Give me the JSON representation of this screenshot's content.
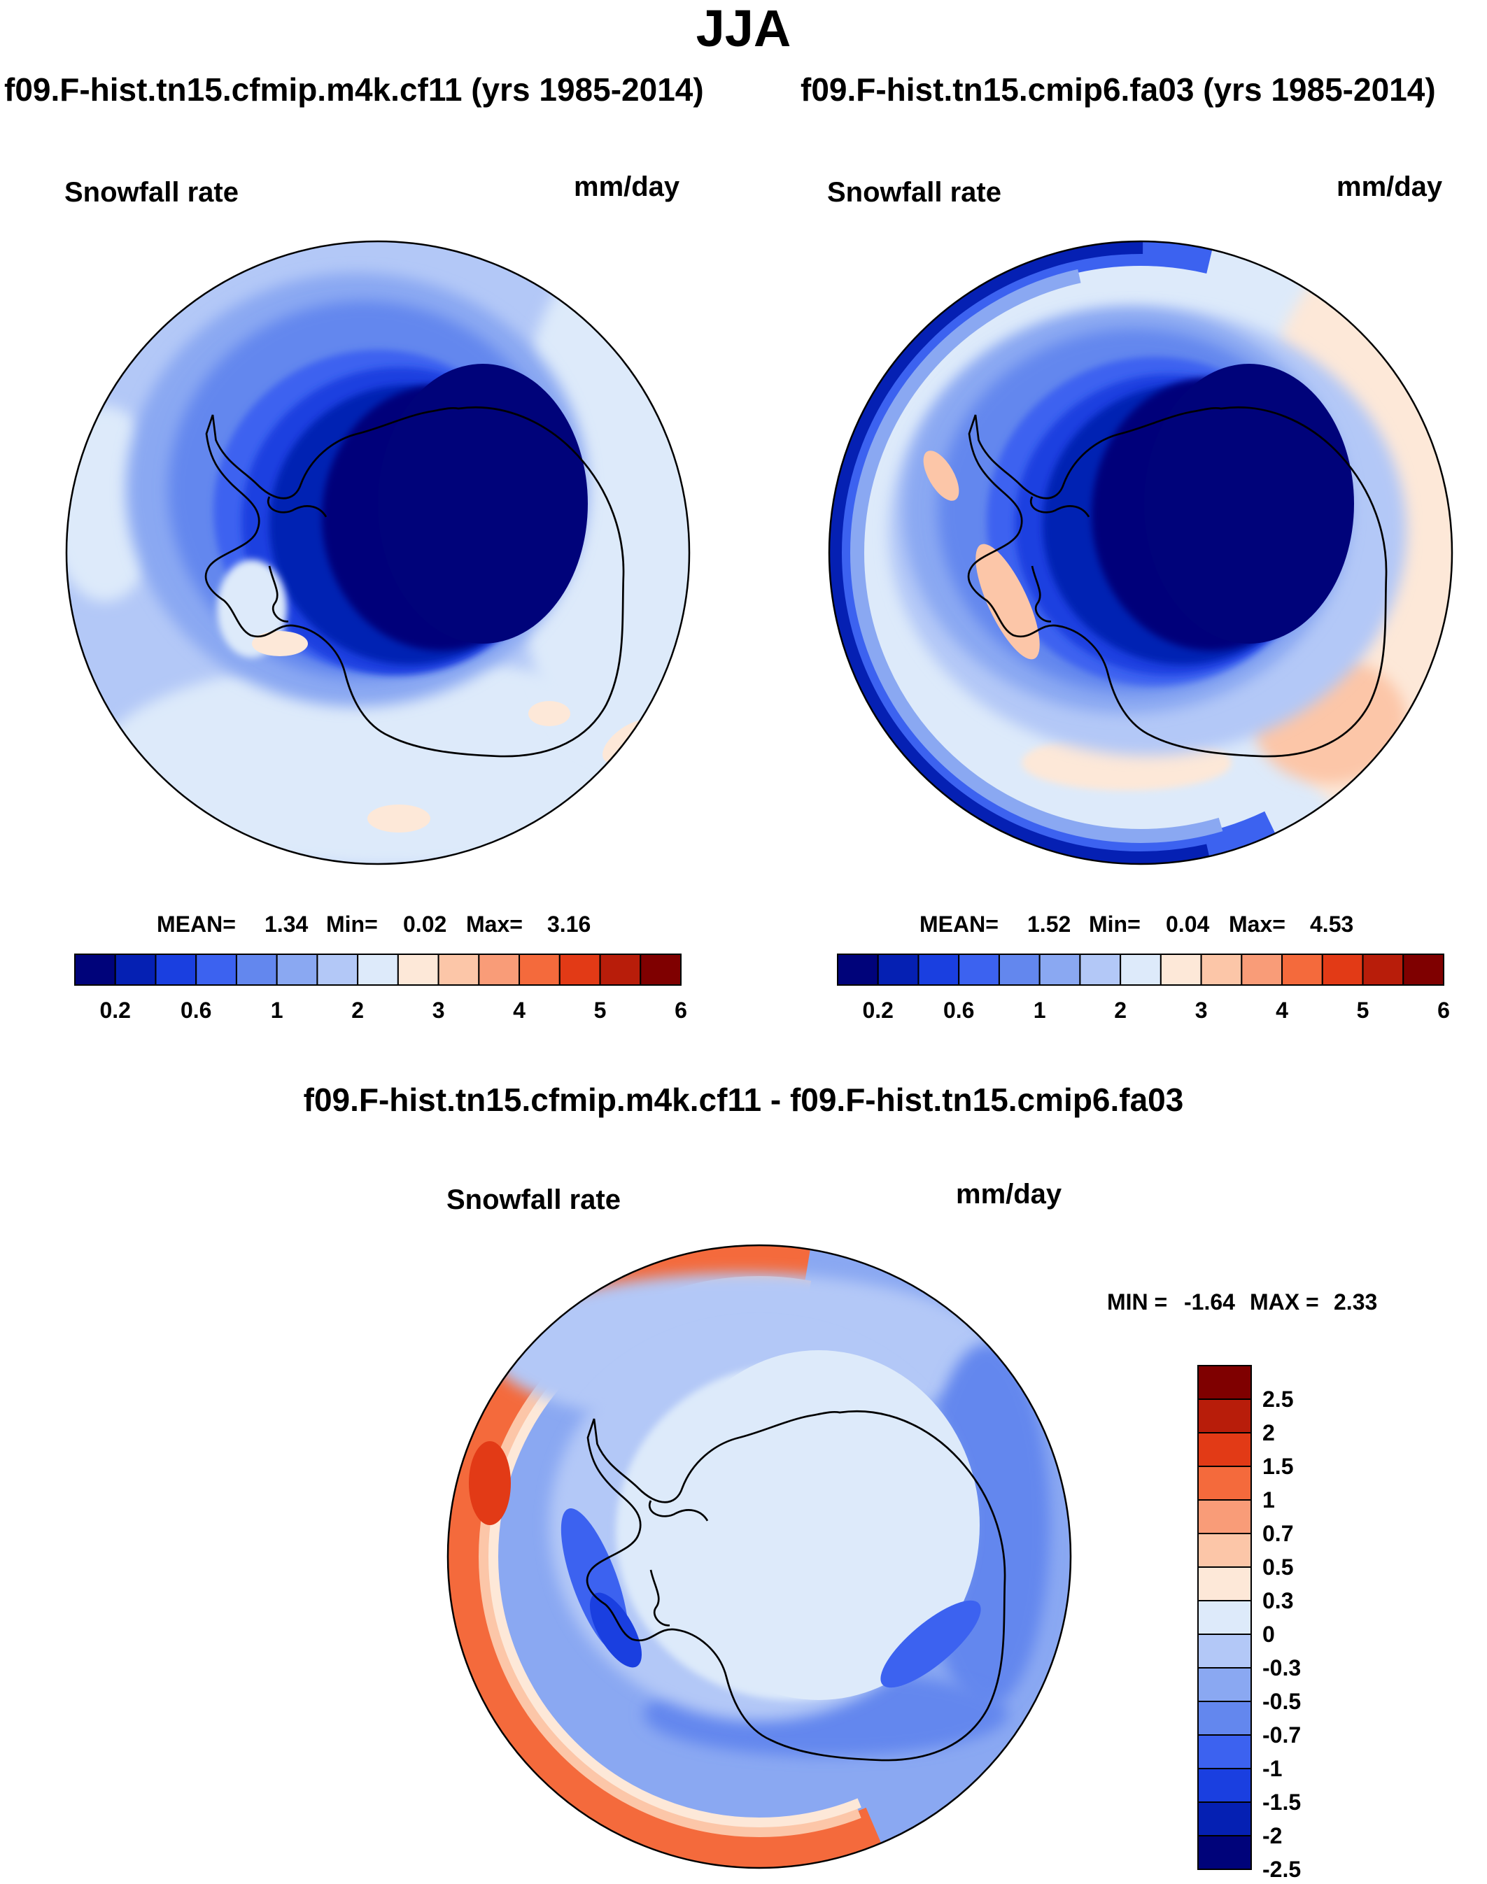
{
  "title": "JJA",
  "chart_data": [
    {
      "type": "heatmap",
      "projection": "south-polar-stereographic",
      "title": "f09.F-hist.tn15.cfmip.m4k.cf11 (yrs 1985-2014)",
      "variable": "Snowfall rate",
      "units": "mm/day",
      "stats": {
        "mean_label": "MEAN=",
        "mean": "1.34",
        "min_label": "Min=",
        "min": "0.02",
        "max_label": "Max=",
        "max": "3.16"
      },
      "colorbar": {
        "orientation": "horizontal",
        "levels": [
          0.2,
          0.4,
          0.6,
          0.8,
          1,
          1.5,
          2,
          2.5,
          3,
          3.5,
          4,
          4.5,
          5,
          5.5,
          6
        ],
        "tick_labels": [
          "0.2",
          "0.6",
          "1",
          "2",
          "3",
          "4",
          "5",
          "6"
        ],
        "colors": [
          "#00037a",
          "#0520b3",
          "#1a3fe0",
          "#3c62f0",
          "#6387ee",
          "#8aa8f2",
          "#b3c8f7",
          "#ddeafa",
          "#fde8d8",
          "#fcc6a8",
          "#f99c78",
          "#f46a3c",
          "#e23a16",
          "#b81d0a",
          "#7f0000"
        ]
      }
    },
    {
      "type": "heatmap",
      "projection": "south-polar-stereographic",
      "title": "f09.F-hist.tn15.cmip6.fa03 (yrs 1985-2014)",
      "variable": "Snowfall rate",
      "units": "mm/day",
      "stats": {
        "mean_label": "MEAN=",
        "mean": "1.52",
        "min_label": "Min=",
        "min": "0.04",
        "max_label": "Max=",
        "max": "4.53"
      },
      "colorbar": {
        "orientation": "horizontal",
        "levels": [
          0.2,
          0.4,
          0.6,
          0.8,
          1,
          1.5,
          2,
          2.5,
          3,
          3.5,
          4,
          4.5,
          5,
          5.5,
          6
        ],
        "tick_labels": [
          "0.2",
          "0.6",
          "1",
          "2",
          "3",
          "4",
          "5",
          "6"
        ],
        "colors": [
          "#00037a",
          "#0520b3",
          "#1a3fe0",
          "#3c62f0",
          "#6387ee",
          "#8aa8f2",
          "#b3c8f7",
          "#ddeafa",
          "#fde8d8",
          "#fcc6a8",
          "#f99c78",
          "#f46a3c",
          "#e23a16",
          "#b81d0a",
          "#7f0000"
        ]
      }
    },
    {
      "type": "heatmap",
      "projection": "south-polar-stereographic",
      "title": "f09.F-hist.tn15.cfmip.m4k.cf11 - f09.F-hist.tn15.cmip6.fa03",
      "variable": "Snowfall rate",
      "units": "mm/day",
      "stats": {
        "min_label": "MIN =",
        "min": "-1.64",
        "max_label": "MAX =",
        "max": "2.33"
      },
      "colorbar": {
        "orientation": "vertical",
        "levels": [
          2.5,
          2,
          1.5,
          1,
          0.7,
          0.5,
          0.3,
          0,
          -0.3,
          -0.5,
          -0.7,
          -1,
          -1.5,
          -2,
          -2.5
        ],
        "tick_labels": [
          "2.5",
          "2",
          "1.5",
          "1",
          "0.7",
          "0.5",
          "0.3",
          "0",
          "-0.3",
          "-0.5",
          "-0.7",
          "-1",
          "-1.5",
          "-2",
          "-2.5"
        ],
        "colors": [
          "#7f0000",
          "#b81d0a",
          "#e23a16",
          "#f46a3c",
          "#f99c78",
          "#fcc6a8",
          "#fde8d8",
          "#ddeafa",
          "#b3c8f7",
          "#8aa8f2",
          "#6387ee",
          "#3c62f0",
          "#1a3fe0",
          "#0520b3",
          "#00037a"
        ]
      }
    }
  ]
}
